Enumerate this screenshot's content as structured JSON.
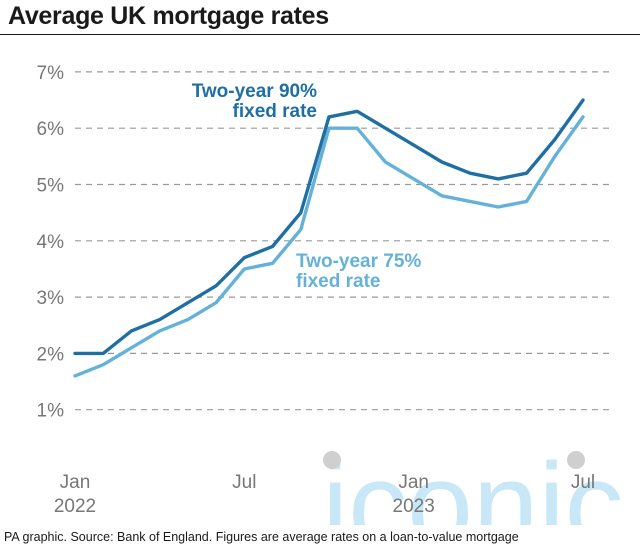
{
  "header": {
    "title": "Average UK mortgage rates"
  },
  "footer": {
    "source": "PA graphic. Source: Bank of England. Figures are average rates on a loan-to-value mortgage"
  },
  "watermark": {
    "text": "iconic"
  },
  "colors": {
    "series_90": "#1f6fa3",
    "series_75": "#64b2d9",
    "grid": "#9a9a9a",
    "tick_text": "#777777",
    "watermark": "#c8e8f7",
    "watermark_dots": "#cfcfcf"
  },
  "chart_data": {
    "type": "line",
    "title": "Average UK mortgage rates",
    "xlabel": "",
    "ylabel": "",
    "x": [
      "2022-01",
      "2022-02",
      "2022-03",
      "2022-04",
      "2022-05",
      "2022-06",
      "2022-07",
      "2022-08",
      "2022-09",
      "2022-10",
      "2022-11",
      "2022-12",
      "2023-01",
      "2023-02",
      "2023-03",
      "2023-04",
      "2023-05",
      "2023-06",
      "2023-07"
    ],
    "ylim": [
      0,
      7
    ],
    "yticks": [
      1,
      2,
      3,
      4,
      5,
      6,
      7
    ],
    "ytick_labels": [
      "1%",
      "2%",
      "3%",
      "4%",
      "5%",
      "6%",
      "7%"
    ],
    "xticks": [
      {
        "x": "2022-01",
        "label": "Jan",
        "sublabel": "2022"
      },
      {
        "x": "2022-07",
        "label": "Jul",
        "sublabel": ""
      },
      {
        "x": "2023-01",
        "label": "Jan",
        "sublabel": "2023"
      },
      {
        "x": "2023-07",
        "label": "Jul",
        "sublabel": ""
      }
    ],
    "grid": "horizontal dashed",
    "series": [
      {
        "name": "Two-year 90% fixed rate",
        "label_lines": [
          "Two-year 90%",
          "fixed rate"
        ],
        "values": [
          2.0,
          2.0,
          2.4,
          2.6,
          2.9,
          3.2,
          3.7,
          3.9,
          4.5,
          6.2,
          6.3,
          6.0,
          5.7,
          5.4,
          5.2,
          5.1,
          5.2,
          5.8,
          6.5
        ]
      },
      {
        "name": "Two-year 75% fixed rate",
        "label_lines": [
          "Two-year 75%",
          "fixed rate"
        ],
        "values": [
          1.6,
          1.8,
          2.1,
          2.4,
          2.6,
          2.9,
          3.5,
          3.6,
          4.2,
          6.0,
          6.0,
          5.4,
          5.1,
          4.8,
          4.7,
          4.6,
          4.7,
          5.5,
          6.2
        ]
      }
    ]
  }
}
